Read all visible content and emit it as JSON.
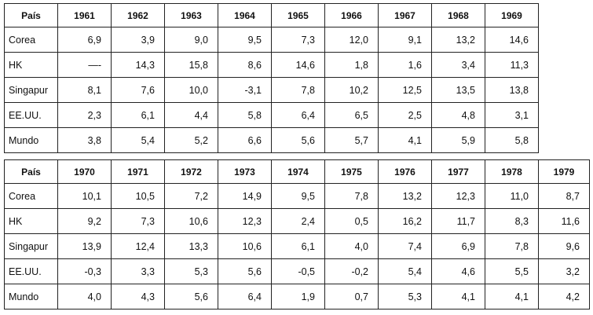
{
  "header_label": "País",
  "table1": {
    "years": [
      "1961",
      "1962",
      "1963",
      "1964",
      "1965",
      "1966",
      "1967",
      "1968",
      "1969"
    ],
    "rows": [
      {
        "country": "Corea",
        "values": [
          "6,9",
          "3,9",
          "9,0",
          "9,5",
          "7,3",
          "12,0",
          "9,1",
          "13,2",
          "14,6"
        ]
      },
      {
        "country": "HK",
        "values": [
          "—-",
          "14,3",
          "15,8",
          "8,6",
          "14,6",
          "1,8",
          "1,6",
          "3,4",
          "11,3"
        ]
      },
      {
        "country": "Singapur",
        "values": [
          "8,1",
          "7,6",
          "10,0",
          "-3,1",
          "7,8",
          "10,2",
          "12,5",
          "13,5",
          "13,8"
        ]
      },
      {
        "country": "EE.UU.",
        "values": [
          "2,3",
          "6,1",
          "4,4",
          "5,8",
          "6,4",
          "6,5",
          "2,5",
          "4,8",
          "3,1"
        ]
      },
      {
        "country": "Mundo",
        "values": [
          "3,8",
          "5,4",
          "5,2",
          "6,6",
          "5,6",
          "5,7",
          "4,1",
          "5,9",
          "5,8"
        ]
      }
    ]
  },
  "table2": {
    "years": [
      "1970",
      "1971",
      "1972",
      "1973",
      "1974",
      "1975",
      "1976",
      "1977",
      "1978",
      "1979"
    ],
    "rows": [
      {
        "country": "Corea",
        "values": [
          "10,1",
          "10,5",
          "7,2",
          "14,9",
          "9,5",
          "7,8",
          "13,2",
          "12,3",
          "11,0",
          "8,7"
        ]
      },
      {
        "country": "HK",
        "values": [
          "9,2",
          "7,3",
          "10,6",
          "12,3",
          "2,4",
          "0,5",
          "16,2",
          "11,7",
          "8,3",
          "11,6"
        ]
      },
      {
        "country": "Singapur",
        "values": [
          "13,9",
          "12,4",
          "13,3",
          "10,6",
          "6,1",
          "4,0",
          "7,4",
          "6,9",
          "7,8",
          "9,6"
        ]
      },
      {
        "country": "EE.UU.",
        "values": [
          "-0,3",
          "3,3",
          "5,3",
          "5,6",
          "-0,5",
          "-0,2",
          "5,4",
          "4,6",
          "5,5",
          "3,2"
        ]
      },
      {
        "country": "Mundo",
        "values": [
          "4,0",
          "4,3",
          "5,6",
          "6,4",
          "1,9",
          "0,7",
          "5,3",
          "4,1",
          "4,1",
          "4,2"
        ]
      }
    ]
  }
}
